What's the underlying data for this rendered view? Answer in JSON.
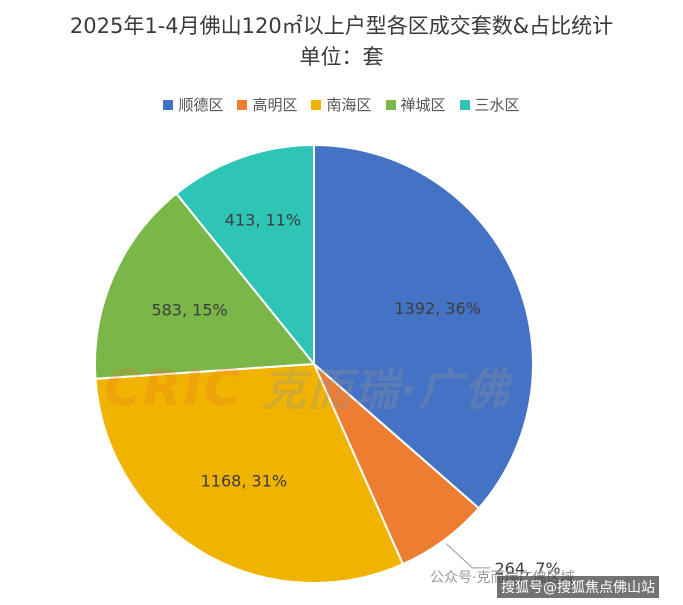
{
  "chart_data": {
    "type": "pie",
    "title": "2025年1-4月佛山120㎡以上户型各区成交套数&占比统计",
    "subtitle": "单位：套",
    "legend_position": "top",
    "categories": [
      "顺德区",
      "高明区",
      "南海区",
      "禅城区",
      "三水区"
    ],
    "values": [
      1392,
      264,
      1168,
      583,
      413
    ],
    "percent_labels": [
      "36%",
      "7%",
      "31%",
      "15%",
      "11%"
    ],
    "data_labels": [
      "1392, 36%",
      "264, 7%",
      "1168, 31%",
      "583, 15%",
      "413, 11%"
    ],
    "colors": [
      "#4472C4",
      "#ED7D31",
      "#F0B400",
      "#7AB648",
      "#2EC4B6"
    ]
  },
  "watermark": {
    "latin": "CRIC",
    "chinese": "克而瑞·广佛"
  },
  "footer": {
    "source": "公众号·克而瑞广佛区域",
    "overlay": "搜狐号@搜狐焦点佛山站"
  }
}
